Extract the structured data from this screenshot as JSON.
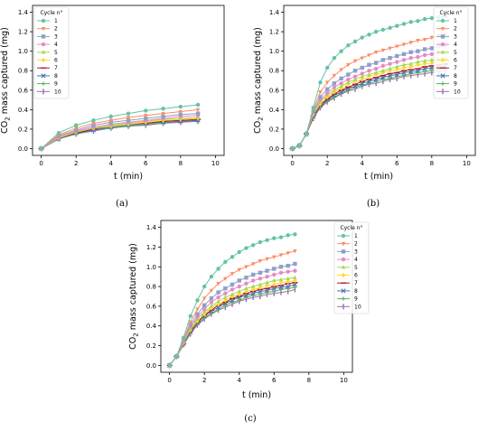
{
  "series_colors": [
    "#66c2a5",
    "#fc8d62",
    "#8da0cb",
    "#e78ac3",
    "#a6d854",
    "#ffd92f",
    "#b2182b",
    "#4575b4",
    "#5aae61",
    "#9970ab"
  ],
  "chart_data": [
    {
      "type": "line",
      "caption": "(a)",
      "xlabel": "t (min)",
      "ylabel_prefix": "CO",
      "ylabel_sub": "2",
      "ylabel_suffix": " mass captured (mg)",
      "xlim": [
        -0.5,
        10.5
      ],
      "ylim": [
        -0.07,
        1.47
      ],
      "xticks": [
        "0",
        "2",
        "4",
        "6",
        "8",
        "10"
      ],
      "yticks": [
        "0.0",
        "0.2",
        "0.4",
        "0.6",
        "0.8",
        "1.0",
        "1.2",
        "1.4"
      ],
      "grid": false,
      "legend_title": "Cycle n°",
      "legend_position": "top-left",
      "x": [
        0,
        1,
        2,
        3,
        4,
        5,
        6,
        7,
        8,
        9
      ],
      "series": [
        {
          "name": "1",
          "marker": "circle",
          "values": [
            0,
            0.16,
            0.24,
            0.29,
            0.33,
            0.36,
            0.39,
            0.41,
            0.43,
            0.45
          ]
        },
        {
          "name": "2",
          "marker": "triangle-down",
          "values": [
            0,
            0.14,
            0.21,
            0.26,
            0.29,
            0.32,
            0.34,
            0.36,
            0.38,
            0.4
          ]
        },
        {
          "name": "3",
          "marker": "square",
          "values": [
            0,
            0.13,
            0.19,
            0.24,
            0.27,
            0.29,
            0.31,
            0.33,
            0.35,
            0.36
          ]
        },
        {
          "name": "4",
          "marker": "circle",
          "values": [
            0,
            0.12,
            0.18,
            0.22,
            0.25,
            0.27,
            0.29,
            0.31,
            0.33,
            0.34
          ]
        },
        {
          "name": "5",
          "marker": "triangle-up",
          "values": [
            0,
            0.12,
            0.17,
            0.21,
            0.24,
            0.26,
            0.28,
            0.3,
            0.31,
            0.32
          ]
        },
        {
          "name": "6",
          "marker": "diamond",
          "values": [
            0,
            0.11,
            0.17,
            0.21,
            0.23,
            0.25,
            0.27,
            0.29,
            0.3,
            0.31
          ]
        },
        {
          "name": "7",
          "marker": "hline",
          "values": [
            0,
            0.11,
            0.16,
            0.2,
            0.23,
            0.25,
            0.26,
            0.28,
            0.29,
            0.3
          ]
        },
        {
          "name": "8",
          "marker": "x",
          "values": [
            0,
            0.1,
            0.16,
            0.19,
            0.22,
            0.24,
            0.26,
            0.27,
            0.28,
            0.29
          ]
        },
        {
          "name": "9",
          "marker": "plus",
          "values": [
            0,
            0.1,
            0.15,
            0.19,
            0.21,
            0.23,
            0.25,
            0.26,
            0.28,
            0.29
          ]
        },
        {
          "name": "10",
          "marker": "vline",
          "values": [
            0,
            0.1,
            0.15,
            0.18,
            0.21,
            0.23,
            0.24,
            0.26,
            0.27,
            0.28
          ]
        }
      ]
    },
    {
      "type": "line",
      "caption": "(b)",
      "xlabel": "t (min)",
      "ylabel_prefix": "CO",
      "ylabel_sub": "2",
      "ylabel_suffix": " mass captured (mg)",
      "xlim": [
        -0.5,
        10.5
      ],
      "ylim": [
        -0.07,
        1.47
      ],
      "xticks": [
        "0",
        "2",
        "4",
        "6",
        "8",
        "10"
      ],
      "yticks": [
        "0.0",
        "0.2",
        "0.4",
        "0.6",
        "0.8",
        "1.0",
        "1.2",
        "1.4"
      ],
      "grid": false,
      "legend_title": "Cycle n°",
      "legend_position": "top-right",
      "x": [
        0,
        0.4,
        0.8,
        1.2,
        1.6,
        2.0,
        2.4,
        2.8,
        3.2,
        3.6,
        4.0,
        4.4,
        4.8,
        5.2,
        5.6,
        6.0,
        6.4,
        6.8,
        7.2,
        7.6,
        8.0,
        8.4,
        8.8
      ],
      "series": [
        {
          "name": "1",
          "marker": "circle",
          "values": [
            0,
            0.03,
            0.15,
            0.42,
            0.68,
            0.83,
            0.93,
            1.0,
            1.06,
            1.1,
            1.14,
            1.17,
            1.2,
            1.22,
            1.24,
            1.26,
            1.28,
            1.3,
            1.31,
            1.33,
            1.34,
            1.35,
            1.36
          ]
        },
        {
          "name": "2",
          "marker": "triangle-down",
          "values": [
            0,
            0.03,
            0.15,
            0.4,
            0.58,
            0.68,
            0.75,
            0.81,
            0.86,
            0.9,
            0.93,
            0.96,
            0.99,
            1.01,
            1.03,
            1.05,
            1.07,
            1.09,
            1.11,
            1.12,
            1.14,
            1.16,
            1.17
          ]
        },
        {
          "name": "3",
          "marker": "square",
          "values": [
            0,
            0.03,
            0.15,
            0.38,
            0.53,
            0.61,
            0.67,
            0.72,
            0.76,
            0.8,
            0.83,
            0.86,
            0.88,
            0.91,
            0.93,
            0.95,
            0.97,
            0.99,
            1.0,
            1.02,
            1.03,
            1.05,
            1.06
          ]
        },
        {
          "name": "4",
          "marker": "circle",
          "values": [
            0,
            0.03,
            0.15,
            0.37,
            0.5,
            0.57,
            0.63,
            0.67,
            0.71,
            0.74,
            0.77,
            0.8,
            0.82,
            0.85,
            0.87,
            0.89,
            0.91,
            0.93,
            0.94,
            0.96,
            0.97,
            0.98,
            0.99
          ]
        },
        {
          "name": "5",
          "marker": "triangle-up",
          "values": [
            0,
            0.03,
            0.15,
            0.36,
            0.48,
            0.55,
            0.6,
            0.64,
            0.68,
            0.71,
            0.74,
            0.76,
            0.78,
            0.8,
            0.82,
            0.84,
            0.86,
            0.87,
            0.89,
            0.9,
            0.91,
            0.92,
            0.93
          ]
        },
        {
          "name": "6",
          "marker": "diamond",
          "values": [
            0,
            0.03,
            0.15,
            0.35,
            0.46,
            0.53,
            0.58,
            0.62,
            0.66,
            0.69,
            0.71,
            0.74,
            0.76,
            0.78,
            0.8,
            0.81,
            0.83,
            0.84,
            0.86,
            0.87,
            0.88,
            0.89,
            0.9
          ]
        },
        {
          "name": "7",
          "marker": "hline",
          "values": [
            0,
            0.03,
            0.15,
            0.34,
            0.45,
            0.51,
            0.56,
            0.6,
            0.63,
            0.66,
            0.69,
            0.71,
            0.73,
            0.75,
            0.77,
            0.78,
            0.8,
            0.81,
            0.82,
            0.84,
            0.85,
            0.86,
            0.87
          ]
        },
        {
          "name": "8",
          "marker": "x",
          "values": [
            0,
            0.03,
            0.15,
            0.33,
            0.44,
            0.5,
            0.55,
            0.58,
            0.62,
            0.64,
            0.67,
            0.69,
            0.71,
            0.73,
            0.75,
            0.76,
            0.78,
            0.79,
            0.8,
            0.82,
            0.83,
            0.84,
            0.85
          ]
        },
        {
          "name": "9",
          "marker": "plus",
          "values": [
            0,
            0.03,
            0.15,
            0.32,
            0.43,
            0.49,
            0.53,
            0.57,
            0.6,
            0.63,
            0.65,
            0.67,
            0.69,
            0.71,
            0.72,
            0.74,
            0.75,
            0.77,
            0.78,
            0.79,
            0.8,
            0.81,
            0.82
          ]
        },
        {
          "name": "10",
          "marker": "vline",
          "values": [
            0,
            0.03,
            0.15,
            0.31,
            0.42,
            0.48,
            0.52,
            0.56,
            0.59,
            0.61,
            0.64,
            0.66,
            0.67,
            0.69,
            0.71,
            0.72,
            0.74,
            0.75,
            0.76,
            0.77,
            0.78,
            0.79,
            0.8
          ]
        }
      ]
    },
    {
      "type": "line",
      "caption": "(c)",
      "xlabel": "t (min)",
      "ylabel_prefix": "CO",
      "ylabel_sub": "2",
      "ylabel_suffix": " mass captured (mg)",
      "xlim": [
        -0.5,
        10.5
      ],
      "ylim": [
        -0.07,
        1.47
      ],
      "xticks": [
        "0",
        "2",
        "4",
        "6",
        "8",
        "10"
      ],
      "yticks": [
        "0.0",
        "0.2",
        "0.4",
        "0.6",
        "0.8",
        "1.0",
        "1.2",
        "1.4"
      ],
      "grid": false,
      "legend_title": "Cycle n°",
      "legend_position": "outside-right",
      "x": [
        0,
        0.4,
        0.8,
        1.2,
        1.6,
        2.0,
        2.4,
        2.8,
        3.2,
        3.6,
        4.0,
        4.4,
        4.8,
        5.2,
        5.6,
        6.0,
        6.4,
        6.8,
        7.2
      ],
      "series": [
        {
          "name": "1",
          "marker": "circle",
          "values": [
            0,
            0.09,
            0.28,
            0.5,
            0.66,
            0.8,
            0.9,
            0.98,
            1.05,
            1.1,
            1.15,
            1.19,
            1.22,
            1.25,
            1.27,
            1.29,
            1.3,
            1.32,
            1.33
          ]
        },
        {
          "name": "2",
          "marker": "triangle-down",
          "values": [
            0,
            0.09,
            0.26,
            0.44,
            0.57,
            0.68,
            0.76,
            0.83,
            0.88,
            0.93,
            0.97,
            1.0,
            1.03,
            1.06,
            1.08,
            1.1,
            1.12,
            1.14,
            1.16
          ]
        },
        {
          "name": "3",
          "marker": "square",
          "values": [
            0,
            0.09,
            0.25,
            0.41,
            0.52,
            0.61,
            0.68,
            0.74,
            0.78,
            0.82,
            0.86,
            0.89,
            0.92,
            0.94,
            0.96,
            0.98,
            1.0,
            1.01,
            1.03
          ]
        },
        {
          "name": "4",
          "marker": "circle",
          "values": [
            0,
            0.09,
            0.24,
            0.39,
            0.49,
            0.57,
            0.64,
            0.69,
            0.73,
            0.77,
            0.8,
            0.83,
            0.86,
            0.88,
            0.9,
            0.92,
            0.94,
            0.95,
            0.96
          ]
        },
        {
          "name": "5",
          "marker": "triangle-up",
          "values": [
            0,
            0.09,
            0.23,
            0.37,
            0.47,
            0.54,
            0.6,
            0.65,
            0.69,
            0.72,
            0.75,
            0.78,
            0.8,
            0.82,
            0.84,
            0.86,
            0.87,
            0.88,
            0.89
          ]
        },
        {
          "name": "6",
          "marker": "diamond",
          "values": [
            0,
            0.09,
            0.23,
            0.36,
            0.45,
            0.52,
            0.58,
            0.62,
            0.66,
            0.7,
            0.72,
            0.75,
            0.77,
            0.79,
            0.81,
            0.82,
            0.84,
            0.85,
            0.86
          ]
        },
        {
          "name": "7",
          "marker": "hline",
          "values": [
            0,
            0.09,
            0.22,
            0.35,
            0.44,
            0.51,
            0.56,
            0.61,
            0.64,
            0.68,
            0.7,
            0.73,
            0.75,
            0.77,
            0.78,
            0.8,
            0.81,
            0.83,
            0.84
          ]
        },
        {
          "name": "8",
          "marker": "x",
          "values": [
            0,
            0.09,
            0.22,
            0.34,
            0.43,
            0.5,
            0.55,
            0.59,
            0.63,
            0.66,
            0.69,
            0.71,
            0.73,
            0.75,
            0.76,
            0.78,
            0.79,
            0.8,
            0.82
          ]
        },
        {
          "name": "9",
          "marker": "plus",
          "values": [
            0,
            0.09,
            0.21,
            0.33,
            0.42,
            0.48,
            0.53,
            0.57,
            0.61,
            0.64,
            0.66,
            0.69,
            0.71,
            0.72,
            0.74,
            0.75,
            0.77,
            0.78,
            0.79
          ]
        },
        {
          "name": "10",
          "marker": "vline",
          "values": [
            0,
            0.09,
            0.21,
            0.32,
            0.41,
            0.47,
            0.52,
            0.56,
            0.59,
            0.62,
            0.65,
            0.67,
            0.69,
            0.7,
            0.72,
            0.73,
            0.74,
            0.75,
            0.77
          ]
        }
      ]
    }
  ]
}
